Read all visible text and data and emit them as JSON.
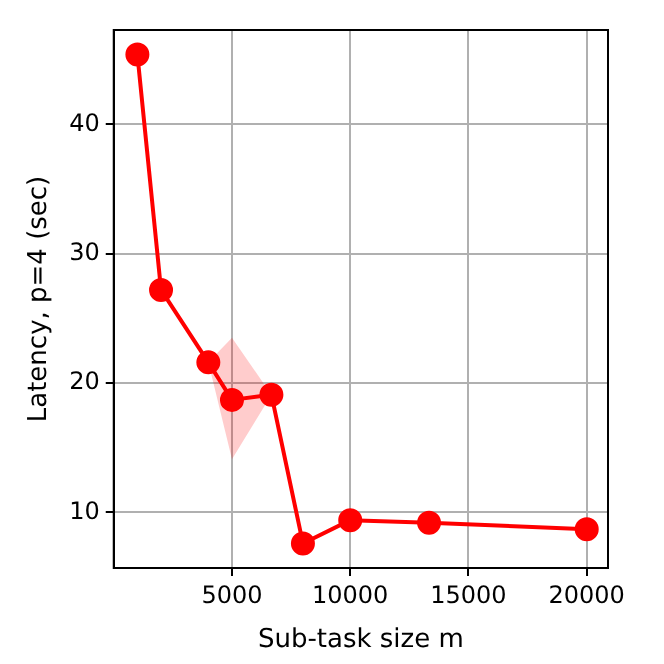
{
  "chart_data": {
    "type": "line",
    "xlabel": "Sub-task size m",
    "ylabel": "Latency, p=4 (sec)",
    "x": [
      1000,
      2000,
      4000,
      5000,
      6667,
      8000,
      10000,
      13333,
      20000
    ],
    "series": [
      {
        "color": "#ff0000",
        "values": [
          45.4,
          27.2,
          21.6,
          18.7,
          19.1,
          7.6,
          9.4,
          9.2,
          8.7
        ],
        "lower": [
          45.4,
          27.2,
          21.6,
          14.1,
          19.1,
          7.6,
          9.4,
          9.2,
          8.7
        ],
        "upper": [
          45.4,
          27.2,
          21.6,
          23.5,
          19.1,
          7.6,
          9.4,
          9.2,
          8.7
        ]
      }
    ],
    "xlim": [
      0,
      20900
    ],
    "ylim": [
      5.7,
      47.3
    ],
    "xticks": [
      5000,
      10000,
      15000,
      20000
    ],
    "yticks": [
      10,
      20,
      30,
      40
    ],
    "grid": true,
    "legend": false,
    "marker": "circle",
    "line_style": "solid"
  }
}
